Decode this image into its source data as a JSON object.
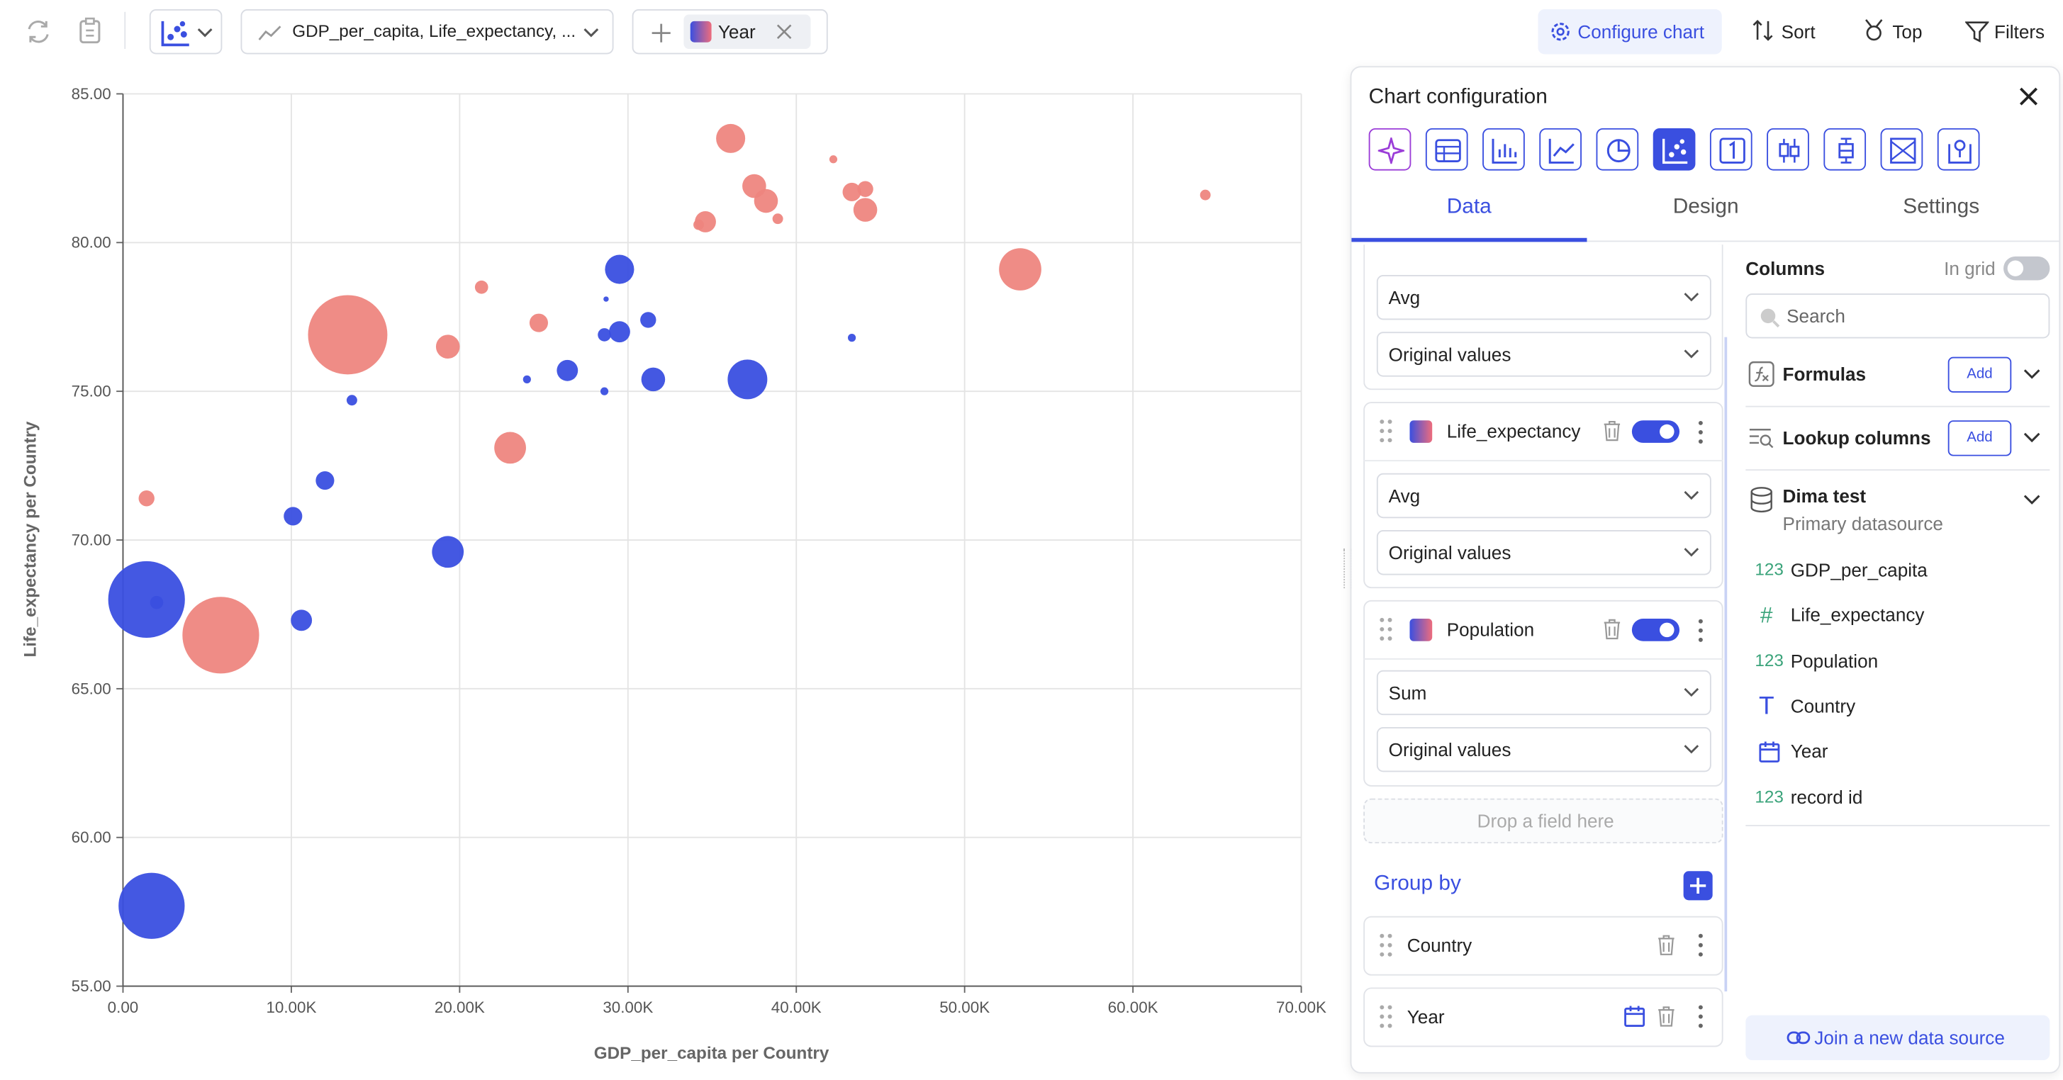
{
  "toolbar": {
    "fields_label": "GDP_per_capita, Life_expectancy, ...",
    "split_label": "Year",
    "configure": "Configure chart",
    "sort": "Sort",
    "top": "Top",
    "filters": "Filters"
  },
  "chart_data": {
    "type": "bubble",
    "xlabel": "GDP_per_capita per Country",
    "ylabel": "Life_expectancy per Country",
    "xlim": [
      0,
      70000
    ],
    "ylim": [
      55,
      85
    ],
    "xticks": [
      {
        "value": 0,
        "label": "0.00"
      },
      {
        "value": 10000,
        "label": "10.00K"
      },
      {
        "value": 20000,
        "label": "20.00K"
      },
      {
        "value": 30000,
        "label": "30.00K"
      },
      {
        "value": 40000,
        "label": "40.00K"
      },
      {
        "value": 50000,
        "label": "50.00K"
      },
      {
        "value": 60000,
        "label": "60.00K"
      },
      {
        "value": 70000,
        "label": "70.00K"
      }
    ],
    "yticks": [
      {
        "value": 55,
        "label": "55.00"
      },
      {
        "value": 60,
        "label": "60.00"
      },
      {
        "value": 65,
        "label": "65.00"
      },
      {
        "value": 70,
        "label": "70.00"
      },
      {
        "value": 75,
        "label": "75.00"
      },
      {
        "value": 80,
        "label": "80.00"
      },
      {
        "value": 85,
        "label": "85.00"
      }
    ],
    "grid": true,
    "series": [
      {
        "color": "#ee8680",
        "x": [
          1400,
          13350,
          5810,
          19300,
          21300,
          24700,
          23000,
          36100,
          37500,
          38200,
          34600,
          34200,
          38900,
          42200,
          43300,
          44100,
          44100,
          53300,
          64300
        ],
        "values": [
          71.4,
          76.9,
          66.8,
          76.5,
          78.5,
          77.3,
          73.1,
          83.5,
          81.9,
          81.4,
          80.7,
          80.6,
          80.8,
          82.8,
          81.7,
          81.8,
          81.1,
          79.1,
          81.6
        ],
        "sizes": [
          36,
          900,
          841,
          81,
          25,
          49,
          144,
          121,
          81,
          81,
          64,
          16,
          16,
          9,
          49,
          36,
          81,
          256,
          16
        ]
      },
      {
        "color": "#3a4fe0",
        "x": [
          1400,
          2000,
          1700,
          10100,
          12000,
          10600,
          13600,
          19300,
          24000,
          26400,
          28600,
          28600,
          28700,
          29500,
          29500,
          31200,
          31500,
          37100,
          43300
        ],
        "values": [
          68.0,
          67.9,
          57.7,
          70.8,
          72.0,
          67.3,
          74.7,
          69.6,
          75.4,
          75.7,
          76.9,
          75.0,
          78.1,
          77.0,
          79.1,
          77.4,
          75.4,
          75.4,
          76.8
        ],
        "sizes": [
          841,
          25,
          625,
          49,
          49,
          64,
          16,
          144,
          9,
          64,
          25,
          9,
          4,
          64,
          121,
          36,
          81,
          225,
          9
        ]
      }
    ]
  },
  "panel": {
    "title": "Chart configuration",
    "tabs": [
      "Data",
      "Design",
      "Settings"
    ],
    "fields": [
      {
        "aggregation": "Avg",
        "mode": "Original values"
      },
      {
        "name": "Life_expectancy",
        "aggregation": "Avg",
        "mode": "Original values"
      },
      {
        "name": "Population",
        "aggregation": "Sum",
        "mode": "Original values"
      }
    ],
    "drop_hint": "Drop a field here",
    "group_by": {
      "title": "Group by",
      "items": [
        "Country",
        "Year"
      ]
    },
    "columns": {
      "title": "Columns",
      "in_grid": "In grid",
      "search": "Search",
      "formulas": "Formulas",
      "lookup": "Lookup columns",
      "add": "Add",
      "source": "Dima test",
      "source_sub": "Primary datasource",
      "items": [
        {
          "icon": "123",
          "label": "GDP_per_capita"
        },
        {
          "icon": "#",
          "label": "Life_expectancy"
        },
        {
          "icon": "123",
          "label": "Population"
        },
        {
          "icon": "T",
          "label": "Country"
        },
        {
          "label": "Year"
        },
        {
          "icon": "123",
          "label": "record id"
        }
      ],
      "join": "Join a new data source"
    }
  }
}
